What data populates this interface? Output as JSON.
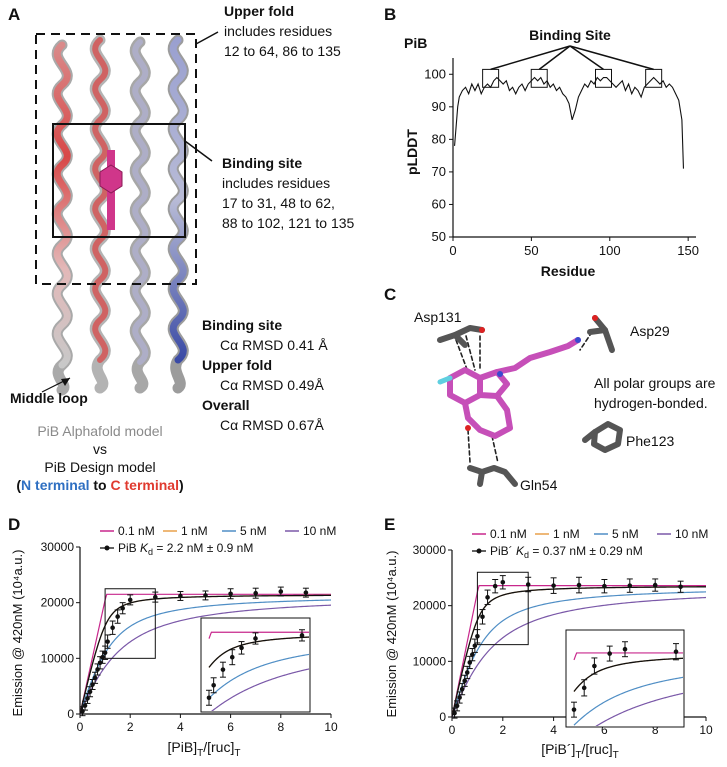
{
  "panels": {
    "a": "A",
    "b": "B",
    "c": "C",
    "d": "D",
    "e": "E"
  },
  "panelA": {
    "upper_fold_title": "Upper fold",
    "upper_fold_l1": "includes residues",
    "upper_fold_l2": "12 to 64, 86 to 135",
    "binding_title": "Binding site",
    "binding_l1": "includes residues",
    "binding_l2": "17 to 31, 48 to 62,",
    "binding_l3": "88 to 102, 121 to 135",
    "rmsd_bs_title": "Binding site",
    "rmsd_bs_val": "Cα RMSD 0.41 Å",
    "rmsd_uf_title": "Upper fold",
    "rmsd_uf_val": "Cα RMSD 0.49Å",
    "rmsd_ov_title": "Overall",
    "rmsd_ov_val": "Cα RMSD 0.67Å",
    "middle_loop": "Middle loop",
    "caption_l1": "PiB Alphafold model",
    "caption_l2": "vs",
    "caption_l3": "PiB Design model",
    "caption_open": "(",
    "caption_n": "N terminal",
    "caption_to": " to ",
    "caption_c": "C terminal",
    "caption_close": ")",
    "colors": {
      "n_terminal": "#2e6fc2",
      "c_terminal": "#e03a2f",
      "caption_gray": "#8a8a8a"
    }
  },
  "panelC": {
    "asp131": "Asp131",
    "asp29": "Asp29",
    "phe123": "Phe123",
    "gln54": "Gln54",
    "note_l1": "All polar groups are",
    "note_l2": "hydrogen-bonded."
  },
  "chart_data": [
    {
      "id": "B",
      "type": "line",
      "title": "PiB",
      "annotation": "Binding Site",
      "xlabel": "Residue",
      "ylabel": "pLDDT",
      "xlim": [
        0,
        155
      ],
      "ylim": [
        50,
        105
      ],
      "xticks": [
        0,
        50,
        100,
        150
      ],
      "yticks": [
        50,
        60,
        70,
        80,
        90,
        100
      ],
      "binding_boxes_x": [
        24,
        55,
        96,
        128
      ],
      "x": [
        1,
        2,
        3,
        4,
        6,
        8,
        10,
        12,
        14,
        16,
        18,
        20,
        22,
        24,
        26,
        28,
        30,
        32,
        34,
        36,
        38,
        40,
        42,
        44,
        46,
        48,
        50,
        52,
        54,
        56,
        58,
        60,
        62,
        64,
        66,
        68,
        70,
        72,
        74,
        76,
        78,
        80,
        82,
        84,
        86,
        88,
        90,
        92,
        94,
        96,
        98,
        100,
        102,
        104,
        106,
        108,
        110,
        112,
        114,
        116,
        118,
        120,
        122,
        124,
        126,
        128,
        130,
        132,
        134,
        136,
        138,
        140,
        142,
        144,
        146,
        147
      ],
      "y": [
        78,
        84,
        90,
        93,
        95,
        96,
        94,
        97,
        95,
        97,
        94,
        96,
        97,
        96,
        98,
        99,
        98,
        97,
        98,
        95,
        96,
        94,
        96,
        97,
        95,
        97,
        98,
        99,
        98,
        99,
        97,
        98,
        96,
        97,
        95,
        96,
        94,
        93,
        91,
        86,
        89,
        93,
        95,
        97,
        96,
        98,
        97,
        99,
        98,
        99,
        99,
        98,
        97,
        96,
        97,
        98,
        95,
        97,
        94,
        96,
        95,
        93,
        96,
        97,
        98,
        99,
        98,
        97,
        98,
        96,
        97,
        96,
        94,
        92,
        86,
        71
      ]
    },
    {
      "id": "D",
      "type": "scatter",
      "xlabel": "[PiB] T/[ruc]T",
      "xlabel_main": "[PiB]",
      "xlabel_sub1": "T",
      "xlabel_mid": "/[ruc]",
      "xlabel_sub2": "T",
      "ylabel": "Emission @ 420nM (10⁴a.u.)",
      "xlim": [
        0,
        10
      ],
      "ylim": [
        0,
        30000
      ],
      "xticks": [
        0,
        2,
        4,
        6,
        8,
        10
      ],
      "yticks": [
        0,
        10000,
        20000,
        30000
      ],
      "legend": [
        "0.1 nM",
        "1 nM",
        "5 nM",
        "10 nM"
      ],
      "legend_colors": [
        "#c8278c",
        "#e9a04a",
        "#4f8ec5",
        "#7a58a8"
      ],
      "data_label_main": "PiB ",
      "data_label_K": "K",
      "data_label_d": "d",
      "data_label_val": " = 2.2 nM ± 0.9 nM",
      "data_x": [
        0.1,
        0.2,
        0.3,
        0.4,
        0.5,
        0.6,
        0.7,
        0.8,
        0.9,
        1.0,
        1.1,
        1.3,
        1.5,
        1.7,
        2.0,
        3.0,
        4.0,
        5.0,
        6.0,
        7.0,
        8.0,
        9.0
      ],
      "data_y": [
        500,
        1500,
        2800,
        4000,
        5300,
        6500,
        8000,
        9200,
        10200,
        11000,
        13000,
        15500,
        17500,
        19000,
        20500,
        21000,
        21200,
        21300,
        21600,
        21700,
        22000,
        21800
      ],
      "data_err": [
        800,
        800,
        900,
        900,
        900,
        1000,
        1000,
        1100,
        1100,
        1200,
        1200,
        1200,
        1200,
        1000,
        900,
        900,
        800,
        800,
        900,
        900,
        800,
        800
      ],
      "plateau": 21500,
      "inset": {
        "x0": 1.0,
        "x1": 3.0,
        "y0": 10000,
        "y1": 22500
      }
    },
    {
      "id": "E",
      "type": "scatter",
      "xlabel": "[PiB´]T/[ruc]T",
      "xlabel_main": "[PiB´]",
      "xlabel_sub1": "T",
      "xlabel_mid": "/[ruc]",
      "xlabel_sub2": "T",
      "ylabel": "Emission @ 420nM (10⁴a.u.)",
      "xlim": [
        0,
        10
      ],
      "ylim": [
        0,
        30000
      ],
      "xticks": [
        0,
        2,
        4,
        6,
        8,
        10
      ],
      "yticks": [
        0,
        10000,
        20000,
        30000
      ],
      "legend": [
        "0.1 nM",
        "1 nM",
        "5 nM",
        "10 nM"
      ],
      "legend_colors": [
        "#c8278c",
        "#e9a04a",
        "#4f8ec5",
        "#7a58a8"
      ],
      "data_label_main": "PiB´ ",
      "data_label_K": "K",
      "data_label_d": "d",
      "data_label_val": " = 0.37 nM ± 0.29 nM",
      "data_x": [
        0.1,
        0.2,
        0.3,
        0.4,
        0.5,
        0.6,
        0.7,
        0.8,
        0.9,
        1.0,
        1.2,
        1.4,
        1.7,
        2.0,
        3.0,
        4.0,
        5.0,
        6.0,
        7.0,
        8.0,
        9.0
      ],
      "data_y": [
        700,
        2000,
        3500,
        5000,
        6500,
        8000,
        9800,
        11200,
        12800,
        14500,
        18000,
        21500,
        23500,
        24200,
        23800,
        23600,
        23700,
        23500,
        23600,
        23700,
        23400
      ],
      "data_err": [
        900,
        900,
        1000,
        1000,
        1000,
        1100,
        1100,
        1100,
        1200,
        1200,
        1300,
        1300,
        1200,
        1200,
        1300,
        1400,
        1400,
        1200,
        1200,
        1100,
        1000
      ],
      "plateau": 23600,
      "inset": {
        "x0": 1.0,
        "x1": 3.0,
        "y0": 13000,
        "y1": 26000
      }
    }
  ]
}
